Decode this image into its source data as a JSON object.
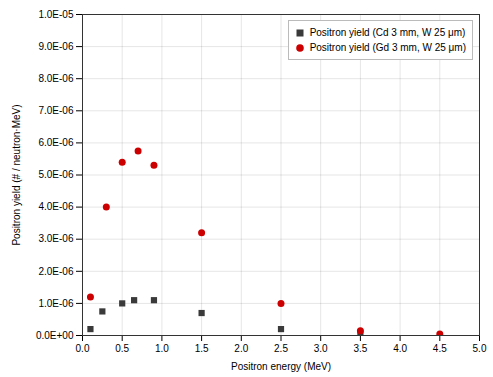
{
  "chart_data": {
    "type": "scatter",
    "xlabel": "Positron energy (MeV)",
    "ylabel": "Positron yield (# / neutron·MeV)",
    "xlim": [
      0,
      5.0
    ],
    "ylim": [
      0,
      1e-05
    ],
    "xticks": [
      {
        "value": 0.0,
        "label": "0.0"
      },
      0.5,
      {
        "value": 1.0,
        "label": "1.0"
      },
      1.5,
      {
        "value": 2.0,
        "label": "2.0"
      },
      2.5,
      {
        "value": 3.0,
        "label": "3.0"
      },
      3.5,
      {
        "value": 4.0,
        "label": "4.0"
      },
      4.5,
      {
        "value": 5.0,
        "label": "5.0"
      }
    ],
    "yticks": [
      {
        "value": 0,
        "label": "0.0E+00"
      },
      {
        "value": 1e-06,
        "label": "1.0E-06"
      },
      {
        "value": 2e-06,
        "label": "2.0E-06"
      },
      {
        "value": 3e-06,
        "label": "3.0E-06"
      },
      {
        "value": 4e-06,
        "label": "4.0E-06"
      },
      {
        "value": 5e-06,
        "label": "5.0E-06"
      },
      {
        "value": 6e-06,
        "label": "6.0E-06"
      },
      {
        "value": 7e-06,
        "label": "7.0E-06"
      },
      {
        "value": 8e-06,
        "label": "8.0E-06"
      },
      {
        "value": 9e-06,
        "label": "9.0E-06"
      },
      {
        "value": 1e-05,
        "label": "1.0E-05"
      }
    ],
    "grid": true,
    "legend": "upper right",
    "series": [
      {
        "name": "Positron yield (Cd 3 mm, W 25 μm)",
        "color": "#3a3a3a",
        "marker": "square",
        "x": [
          0.1,
          0.25,
          0.5,
          0.65,
          0.9,
          1.5,
          2.5,
          3.5
        ],
        "values": [
          2e-07,
          7.5e-07,
          1e-06,
          1.1e-06,
          1.1e-06,
          7e-07,
          2e-07,
          5e-08
        ]
      },
      {
        "name": "Positron yield (Gd 3 mm, W 25 μm)",
        "color": "#cc0000",
        "marker": "circle",
        "x": [
          0.1,
          0.3,
          0.5,
          0.7,
          0.9,
          1.5,
          2.5,
          3.5,
          4.5
        ],
        "values": [
          1.2e-06,
          4e-06,
          5.4e-06,
          5.75e-06,
          5.3e-06,
          3.2e-06,
          1e-06,
          1.5e-07,
          5e-08
        ]
      }
    ]
  }
}
